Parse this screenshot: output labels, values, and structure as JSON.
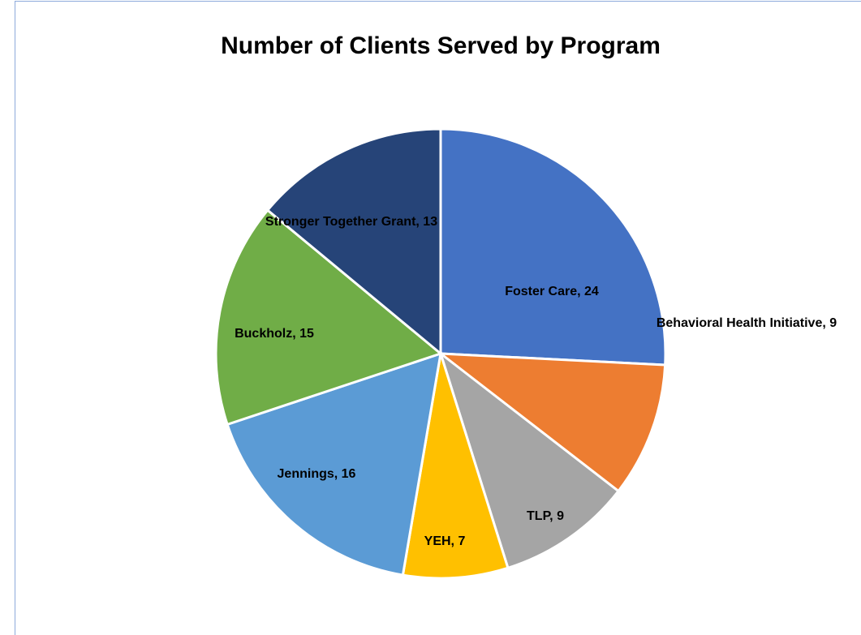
{
  "chart_data": {
    "type": "pie",
    "title": "Number of Clients Served by Program",
    "categories": [
      "Foster Care",
      "Behavioral Health Initiative",
      "TLP",
      "YEH",
      "Jennings",
      "Buckholz",
      "Stronger Together Grant"
    ],
    "values": [
      24,
      9,
      9,
      7,
      16,
      15,
      13
    ],
    "value_labels": [
      "Foster Care, 24",
      "Behavioral Health Initiative, 9",
      "TLP, 9",
      "YEH, 7",
      "Jennings, 16",
      "Buckholz, 15",
      "Stronger Together Grant, 13"
    ],
    "colors": [
      "#4472c4",
      "#ed7d31",
      "#a5a5a5",
      "#ffc000",
      "#5b9bd5",
      "#70ad47",
      "#264478"
    ]
  }
}
